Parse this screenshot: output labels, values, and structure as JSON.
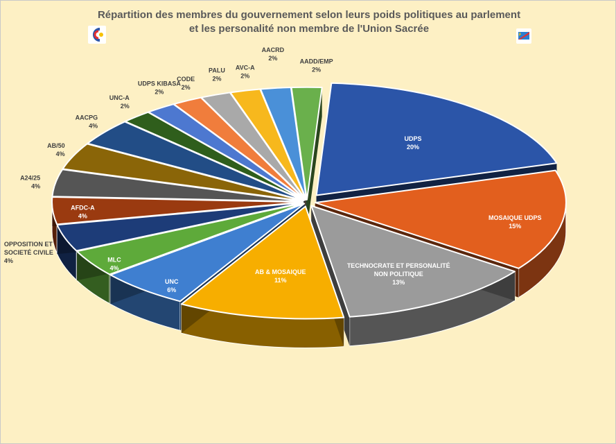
{
  "header": {
    "title_line1": "Répartition des membres du gouvernement selon leurs poids politiques au parlement",
    "title_line2": "et les personalité non membre de l'Union Sacrée"
  },
  "logos": {
    "left": "party-logo",
    "right": "flag-emblem"
  },
  "chart_data": {
    "type": "pie",
    "style": "3d-exploded",
    "title": "Répartition des membres du gouvernement selon leurs poids politiques au parlement et les personalité non membre de l'Union Sacrée",
    "slices": [
      {
        "label": "UDPS",
        "value": 20,
        "value_label": "20%",
        "color": "#2b55a8"
      },
      {
        "label": "MOSAIQUE UDPS",
        "value": 15,
        "value_label": "15%",
        "color": "#e25f1e"
      },
      {
        "label": "TECHNOCRATE ET PERSONALITÉ NON POLITIQUE",
        "value": 13,
        "value_label": "13%",
        "color": "#9b9b9b"
      },
      {
        "label": "AB & MOSAIQUE",
        "value": 11,
        "value_label": "11%",
        "color": "#f7ae00"
      },
      {
        "label": "UNC",
        "value": 6,
        "value_label": "6%",
        "color": "#3f7fd0"
      },
      {
        "label": "MLC",
        "value": 4,
        "value_label": "4%",
        "color": "#5eaa3a"
      },
      {
        "label": "OPPOSITION ET SOCIETÉ CIVILE",
        "value": 4,
        "value_label": "4%",
        "color": "#1d3c78"
      },
      {
        "label": "AFDC-A",
        "value": 4,
        "value_label": "4%",
        "color": "#9a3a10"
      },
      {
        "label": "A24/25",
        "value": 4,
        "value_label": "4%",
        "color": "#555555"
      },
      {
        "label": "AB/50",
        "value": 4,
        "value_label": "4%",
        "color": "#8a6508"
      },
      {
        "label": "AACPG",
        "value": 4,
        "value_label": "4%",
        "color": "#224d86"
      },
      {
        "label": "UNC-A",
        "value": 2,
        "value_label": "2%",
        "color": "#2f5e1c"
      },
      {
        "label": "UDPS KIBASA",
        "value": 2,
        "value_label": "2%",
        "color": "#4d78d0"
      },
      {
        "label": "CODE",
        "value": 2,
        "value_label": "2%",
        "color": "#f07d3c"
      },
      {
        "label": "PALU",
        "value": 2,
        "value_label": "2%",
        "color": "#a9a9a9"
      },
      {
        "label": "AVC-A",
        "value": 2,
        "value_label": "2%",
        "color": "#f7b81d"
      },
      {
        "label": "AACRD",
        "value": 2,
        "value_label": "2%",
        "color": "#4a90d8"
      },
      {
        "label": "AADD/EMP",
        "value": 2,
        "value_label": "2%",
        "color": "#6ab04c"
      }
    ],
    "legend": "none"
  }
}
